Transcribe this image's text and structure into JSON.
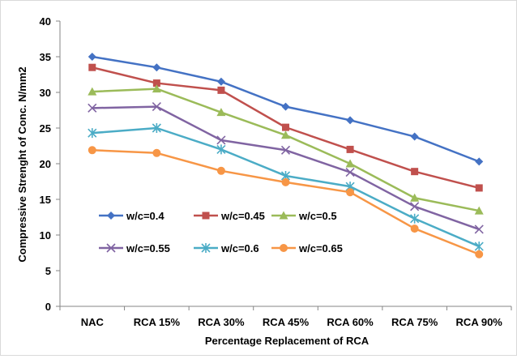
{
  "chart_data": {
    "type": "line",
    "title": "",
    "xlabel": "Percentage Replacement of RCA",
    "ylabel": "Compressive Strenght of Conc. N/mm2",
    "categories": [
      "NAC",
      "RCA 15%",
      "RCA 30%",
      "RCA 45%",
      "RCA 60%",
      "RCA 75%",
      "RCA 90%"
    ],
    "ylim": [
      0,
      40
    ],
    "yticks": [
      "0",
      "5",
      "10",
      "15",
      "20",
      "25",
      "30",
      "35",
      "40"
    ],
    "grid": false,
    "legend_position": "center-left",
    "series": [
      {
        "name": "w/c=0.4",
        "color": "#4472C4",
        "marker": "diamond",
        "values": [
          35.0,
          33.5,
          31.5,
          28.0,
          26.1,
          23.8,
          20.3
        ]
      },
      {
        "name": "w/c=0.45",
        "color": "#C0504D",
        "marker": "square",
        "values": [
          33.5,
          31.3,
          30.3,
          25.1,
          22.0,
          18.9,
          16.6
        ]
      },
      {
        "name": "w/c=0.5",
        "color": "#9BBB59",
        "marker": "triangle",
        "values": [
          30.1,
          30.5,
          27.2,
          24.0,
          20.0,
          15.2,
          13.4
        ]
      },
      {
        "name": "w/c=0.55",
        "color": "#8064A2",
        "marker": "x",
        "values": [
          27.8,
          28.0,
          23.3,
          21.9,
          18.8,
          14.0,
          10.8
        ]
      },
      {
        "name": "w/c=0.6",
        "color": "#4BACC6",
        "marker": "star",
        "values": [
          24.3,
          25.0,
          22.0,
          18.3,
          16.8,
          12.3,
          8.4
        ]
      },
      {
        "name": "w/c=0.65",
        "color": "#F79646",
        "marker": "circle",
        "values": [
          21.9,
          21.5,
          19.0,
          17.4,
          16.0,
          10.9,
          7.3
        ]
      }
    ]
  }
}
